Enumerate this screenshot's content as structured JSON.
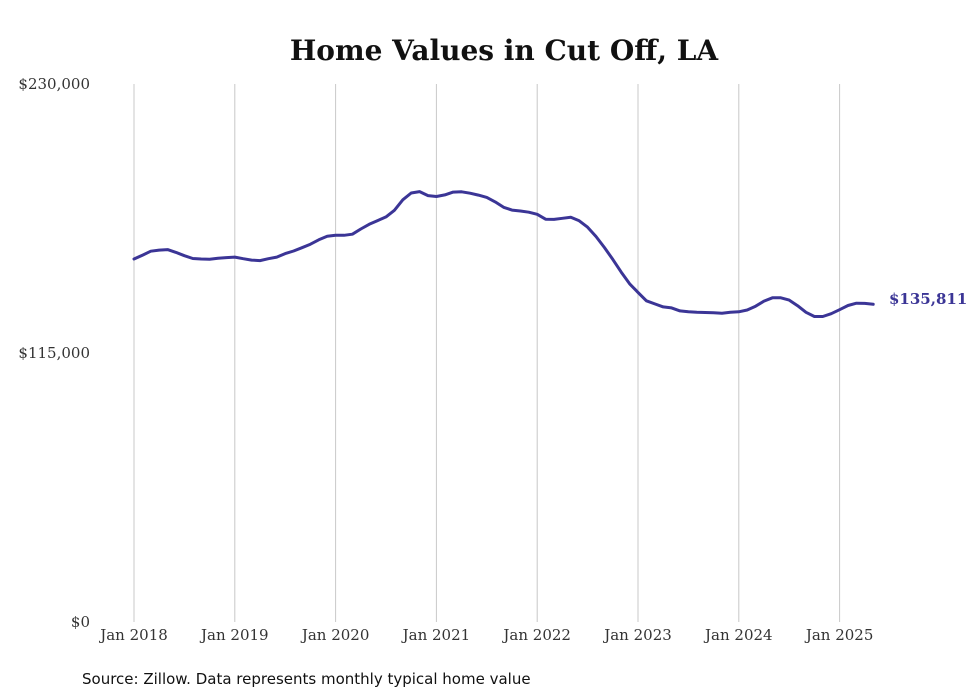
{
  "chart_data": {
    "type": "line",
    "title": "Home Values in Cut Off, LA",
    "source": "Source: Zillow. Data represents monthly typical home value",
    "ylim": [
      0,
      230000
    ],
    "yticks": [
      {
        "value": 0,
        "label": "$0"
      },
      {
        "value": 115000,
        "label": "$115,000"
      },
      {
        "value": 230000,
        "label": "$230,000"
      }
    ],
    "xticks": [
      {
        "value": "2018-01",
        "label": "Jan 2018"
      },
      {
        "value": "2019-01",
        "label": "Jan 2019"
      },
      {
        "value": "2020-01",
        "label": "Jan 2020"
      },
      {
        "value": "2021-01",
        "label": "Jan 2021"
      },
      {
        "value": "2022-01",
        "label": "Jan 2022"
      },
      {
        "value": "2023-01",
        "label": "Jan 2023"
      },
      {
        "value": "2024-01",
        "label": "Jan 2024"
      },
      {
        "value": "2025-01",
        "label": "Jan 2025"
      }
    ],
    "xrange": [
      "2018-01",
      "2025-05"
    ],
    "grid": "vertical",
    "series_color": "#3b3596",
    "end_label": "$135,811",
    "series": [
      {
        "x": [
          "2018-01",
          "2018-02",
          "2018-03",
          "2018-04",
          "2018-05",
          "2018-06",
          "2018-07",
          "2018-08",
          "2018-09",
          "2018-10",
          "2018-11",
          "2018-12",
          "2019-01",
          "2019-02",
          "2019-03",
          "2019-04",
          "2019-05",
          "2019-06",
          "2019-07",
          "2019-08",
          "2019-09",
          "2019-10",
          "2019-11",
          "2019-12",
          "2020-01",
          "2020-02",
          "2020-03",
          "2020-04",
          "2020-05",
          "2020-06",
          "2020-07",
          "2020-08",
          "2020-09",
          "2020-10",
          "2020-11",
          "2020-12",
          "2021-01",
          "2021-02",
          "2021-03",
          "2021-04",
          "2021-05",
          "2021-06",
          "2021-07",
          "2021-08",
          "2021-09",
          "2021-10",
          "2021-11",
          "2021-12",
          "2022-01",
          "2022-02",
          "2022-03",
          "2022-04",
          "2022-05",
          "2022-06",
          "2022-07",
          "2022-08",
          "2022-09",
          "2022-10",
          "2022-11",
          "2022-12",
          "2023-01",
          "2023-02",
          "2023-03",
          "2023-04",
          "2023-05",
          "2023-06",
          "2023-07",
          "2023-08",
          "2023-09",
          "2023-10",
          "2023-11",
          "2023-12",
          "2024-01",
          "2024-02",
          "2024-03",
          "2024-04",
          "2024-05",
          "2024-06",
          "2024-07",
          "2024-08",
          "2024-09",
          "2024-10",
          "2024-11",
          "2024-12",
          "2025-01",
          "2025-02",
          "2025-03",
          "2025-04",
          "2025-05"
        ],
        "y": [
          155200,
          156800,
          158500,
          159000,
          159200,
          158000,
          156600,
          155400,
          155200,
          155100,
          155500,
          155800,
          156000,
          155300,
          154700,
          154500,
          155300,
          156000,
          157500,
          158600,
          160000,
          161500,
          163400,
          164900,
          165300,
          165300,
          165800,
          168000,
          170000,
          171600,
          173200,
          176000,
          180500,
          183400,
          184000,
          182300,
          181900,
          182600,
          183800,
          183900,
          183300,
          182500,
          181500,
          179600,
          177300,
          176100,
          175700,
          175200,
          174300,
          172200,
          172100,
          172600,
          173000,
          171500,
          168800,
          164800,
          160100,
          155000,
          149600,
          144600,
          140900,
          137300,
          136000,
          134700,
          134300,
          133000,
          132600,
          132400,
          132300,
          132200,
          132000,
          132400,
          132600,
          133400,
          135000,
          137200,
          138600,
          138600,
          137600,
          135200,
          132400,
          130600,
          130600,
          131800,
          133500,
          135300,
          136300,
          136200,
          135800
        ]
      }
    ]
  }
}
